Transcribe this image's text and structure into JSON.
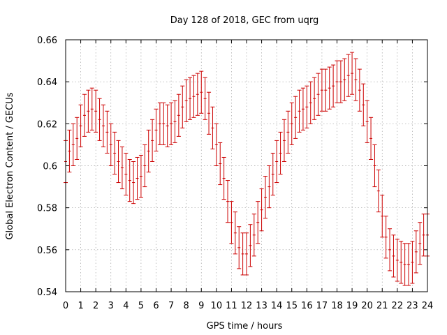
{
  "chart_data": {
    "type": "scatter",
    "title": "Day 128 of 2018, GEC from uqrg",
    "xlabel": "GPS time / hours",
    "ylabel": "Global Electron Content / GECUs",
    "xlim": [
      0,
      24
    ],
    "ylim": [
      0.54,
      0.66
    ],
    "xticks": [
      "0",
      "1",
      "2",
      "3",
      "4",
      "5",
      "6",
      "7",
      "8",
      "9",
      "10",
      "11",
      "12",
      "13",
      "14",
      "15",
      "16",
      "17",
      "18",
      "19",
      "20",
      "21",
      "22",
      "23",
      "24"
    ],
    "yticks": [
      "0.54",
      "0.56",
      "0.58",
      "0.6",
      "0.62",
      "0.64",
      "0.66"
    ],
    "grid": true,
    "error_half_width": 0.01,
    "series": [
      {
        "color": "#cc0000",
        "x": [
          0,
          0.25,
          0.5,
          0.75,
          1,
          1.25,
          1.5,
          1.75,
          2,
          2.25,
          2.5,
          2.75,
          3,
          3.25,
          3.5,
          3.75,
          4,
          4.25,
          4.5,
          4.75,
          5,
          5.25,
          5.5,
          5.75,
          6,
          6.25,
          6.5,
          6.75,
          7,
          7.25,
          7.5,
          7.75,
          8,
          8.25,
          8.5,
          8.75,
          9,
          9.25,
          9.5,
          9.75,
          10,
          10.25,
          10.5,
          10.75,
          11,
          11.25,
          11.5,
          11.75,
          12,
          12.25,
          12.5,
          12.75,
          13,
          13.25,
          13.5,
          13.75,
          14,
          14.25,
          14.5,
          14.75,
          15,
          15.25,
          15.5,
          15.75,
          16,
          16.25,
          16.5,
          16.75,
          17,
          17.25,
          17.5,
          17.75,
          18,
          18.25,
          18.5,
          18.75,
          19,
          19.25,
          19.5,
          19.75,
          20,
          20.25,
          20.5,
          20.75,
          21,
          21.25,
          21.5,
          21.75,
          22,
          22.25,
          22.5,
          22.75,
          23,
          23.25,
          23.5,
          23.75,
          24
        ],
        "y": [
          0.602,
          0.607,
          0.61,
          0.613,
          0.619,
          0.624,
          0.626,
          0.627,
          0.626,
          0.622,
          0.619,
          0.616,
          0.61,
          0.606,
          0.602,
          0.599,
          0.596,
          0.593,
          0.592,
          0.594,
          0.595,
          0.6,
          0.607,
          0.612,
          0.617,
          0.62,
          0.62,
          0.619,
          0.62,
          0.621,
          0.624,
          0.628,
          0.631,
          0.632,
          0.633,
          0.634,
          0.635,
          0.632,
          0.625,
          0.618,
          0.61,
          0.601,
          0.594,
          0.583,
          0.573,
          0.568,
          0.561,
          0.558,
          0.558,
          0.562,
          0.567,
          0.573,
          0.579,
          0.585,
          0.59,
          0.596,
          0.602,
          0.606,
          0.612,
          0.616,
          0.62,
          0.623,
          0.626,
          0.627,
          0.628,
          0.63,
          0.632,
          0.634,
          0.636,
          0.636,
          0.637,
          0.638,
          0.64,
          0.64,
          0.641,
          0.643,
          0.644,
          0.641,
          0.636,
          0.629,
          0.621,
          0.613,
          0.6,
          0.588,
          0.576,
          0.566,
          0.56,
          0.557,
          0.555,
          0.554,
          0.553,
          0.553,
          0.554,
          0.559,
          0.563,
          0.567,
          0.567
        ]
      }
    ]
  }
}
